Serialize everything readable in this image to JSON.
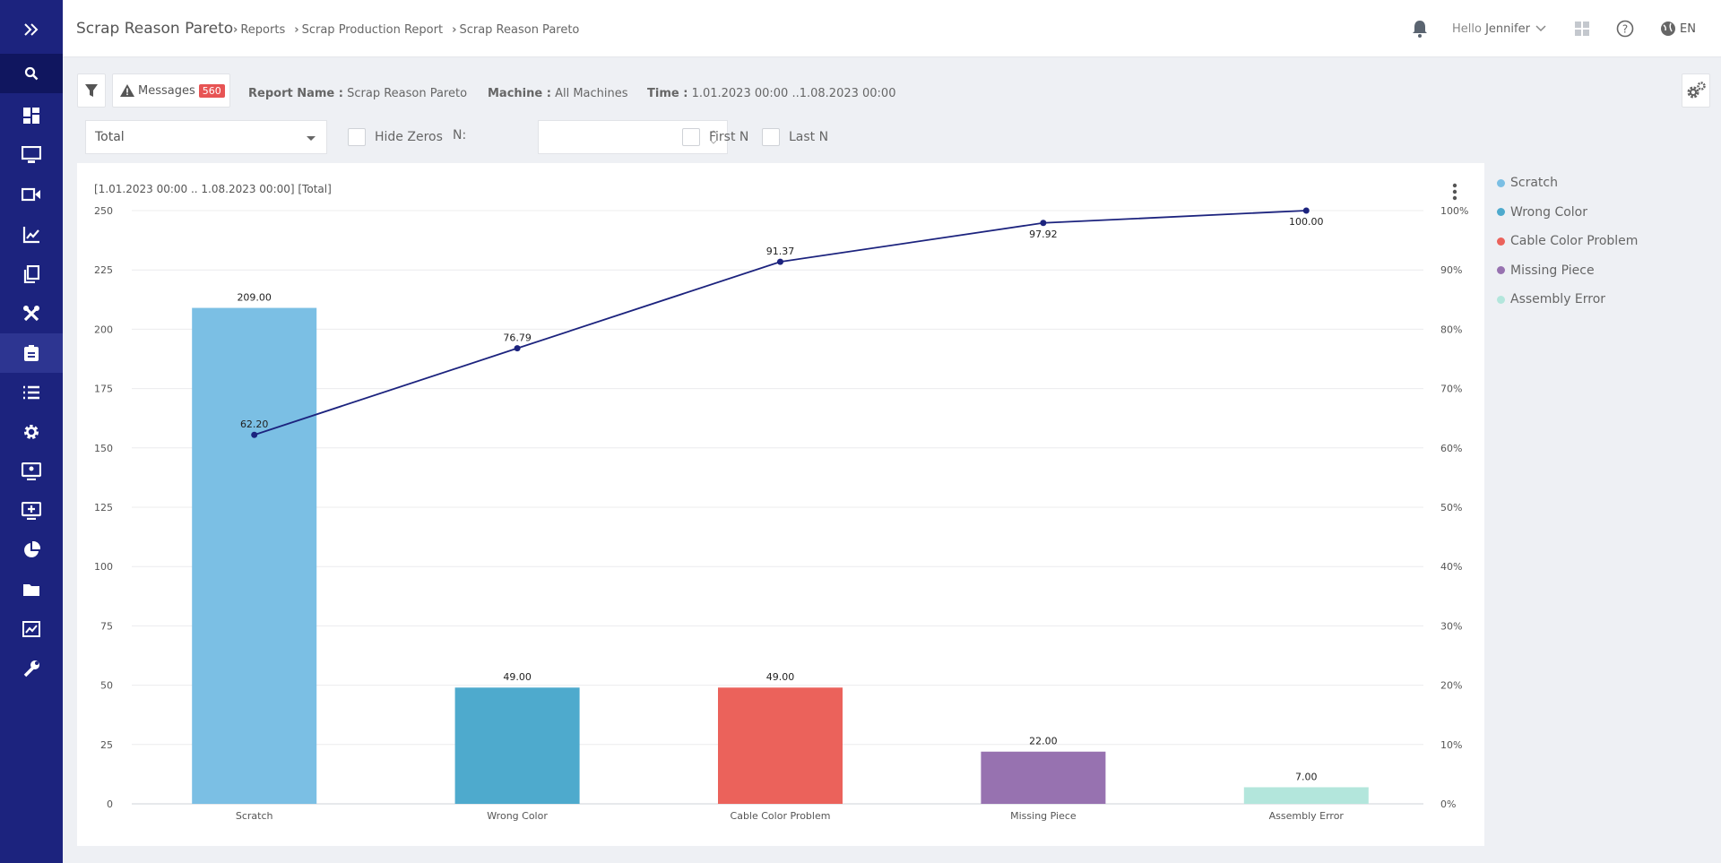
{
  "header": {
    "title": "Scrap Reason Pareto",
    "breadcrumbs": [
      "Reports",
      "Scrap Production Report",
      "Scrap Reason Pareto"
    ],
    "greeting": "Hello",
    "user": "Jennifer",
    "language": "EN"
  },
  "toolbar": {
    "messages_label": "Messages",
    "messages_count": "560",
    "report_name_label": "Report Name :",
    "report_name_value": "Scrap Reason Pareto",
    "machine_label": "Machine :",
    "machine_value": "All Machines",
    "time_label": "Time :",
    "time_value": "1.01.2023 00:00 ..1.08.2023 00:00"
  },
  "filters": {
    "select_value": "Total",
    "hide_zeros_label": "Hide Zeros",
    "n_label": "N:",
    "n_value": "",
    "first_n_label": "First N",
    "last_n_label": "Last N"
  },
  "colors": {
    "sidebar": "#1c237e",
    "line": "#1c237e",
    "badge": "#e75454"
  },
  "chart_data": {
    "type": "bar",
    "subtitle": "[1.01.2023 00:00 .. 1.08.2023 00:00] [Total]",
    "categories": [
      "Scratch",
      "Wrong Color",
      "Cable Color Problem",
      "Missing Piece",
      "Assembly Error"
    ],
    "values": [
      209,
      49,
      49,
      22,
      7
    ],
    "value_labels": [
      "209.00",
      "49.00",
      "49.00",
      "22.00",
      "7.00"
    ],
    "bar_colors": [
      "#7bbfe4",
      "#4eaacd",
      "#eb625b",
      "#9772b0",
      "#b3e6dc"
    ],
    "cumulative_percent": [
      62.2,
      76.79,
      91.37,
      97.92,
      100
    ],
    "cumulative_labels": [
      "62.20",
      "76.79",
      "91.37",
      "97.92",
      "100.00"
    ],
    "y_ticks": [
      "0",
      "25",
      "50",
      "75",
      "100",
      "125",
      "150",
      "175",
      "200",
      "225",
      "250"
    ],
    "y2_ticks": [
      "0%",
      "10%",
      "20%",
      "30%",
      "40%",
      "50%",
      "60%",
      "70%",
      "80%",
      "90%",
      "100%"
    ],
    "ylim": [
      0,
      250
    ],
    "y2lim": [
      0,
      100
    ],
    "grid": true,
    "legend": "right",
    "legend_entries": [
      "Scratch",
      "Wrong Color",
      "Cable Color Problem",
      "Missing Piece",
      "Assembly Error"
    ]
  }
}
